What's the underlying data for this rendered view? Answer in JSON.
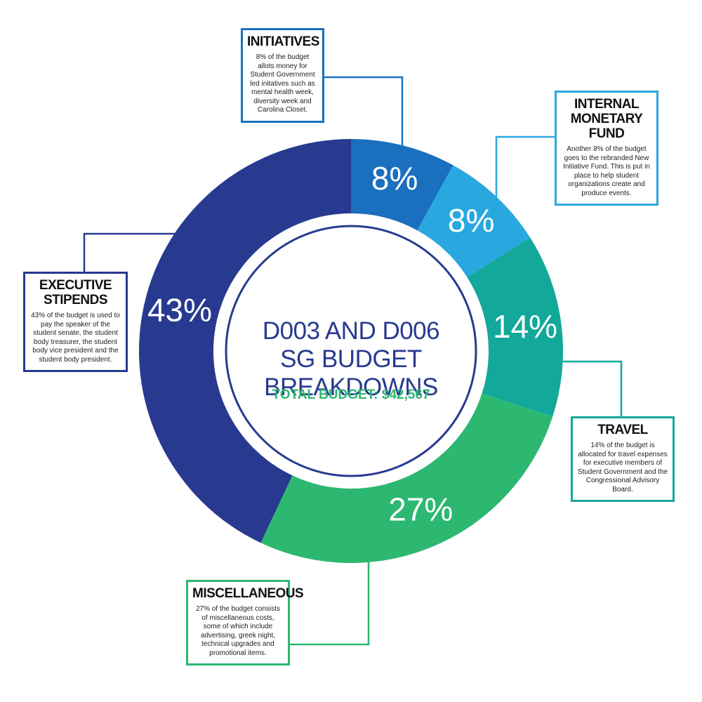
{
  "chart_data": {
    "type": "pie",
    "donut": true,
    "title": "D003 AND D006 SG BUDGET BREAKDOWNS",
    "subtitle": "TOTAL BUDGET: $42,567",
    "categories": [
      "INITIATIVES",
      "INTERNAL MONETARY FUND",
      "TRAVEL",
      "MISCELLANEOUS",
      "EXECUTIVE STIPENDS"
    ],
    "values": [
      8,
      8,
      14,
      27,
      43
    ],
    "value_labels": [
      "8%",
      "8%",
      "14%",
      "27%",
      "43%"
    ],
    "colors": [
      "#1a6fbf",
      "#29a8e0",
      "#12a89a",
      "#2db872",
      "#283a8f"
    ],
    "descriptions": [
      "8% of the budget allots money for Student Government led initatives such as mental health week, diversity week and Carolina Closet.",
      "Another 8% of the budget goes to the rebranded New Initiative Fund. This is put in place to help student organizations create and produce events.",
      "14% of the budget is allocated for travel expenses for executive members of Student Government and the Congressional Advisory Board.",
      "27% of the budget consists of miscellaneous costs, some of which include advertising, greek night, technical upgrades and promotional items.",
      "43% of the budget is used to pay the speaker of the student senate, the student body treasurer, the student body vice president and the student body president."
    ]
  }
}
